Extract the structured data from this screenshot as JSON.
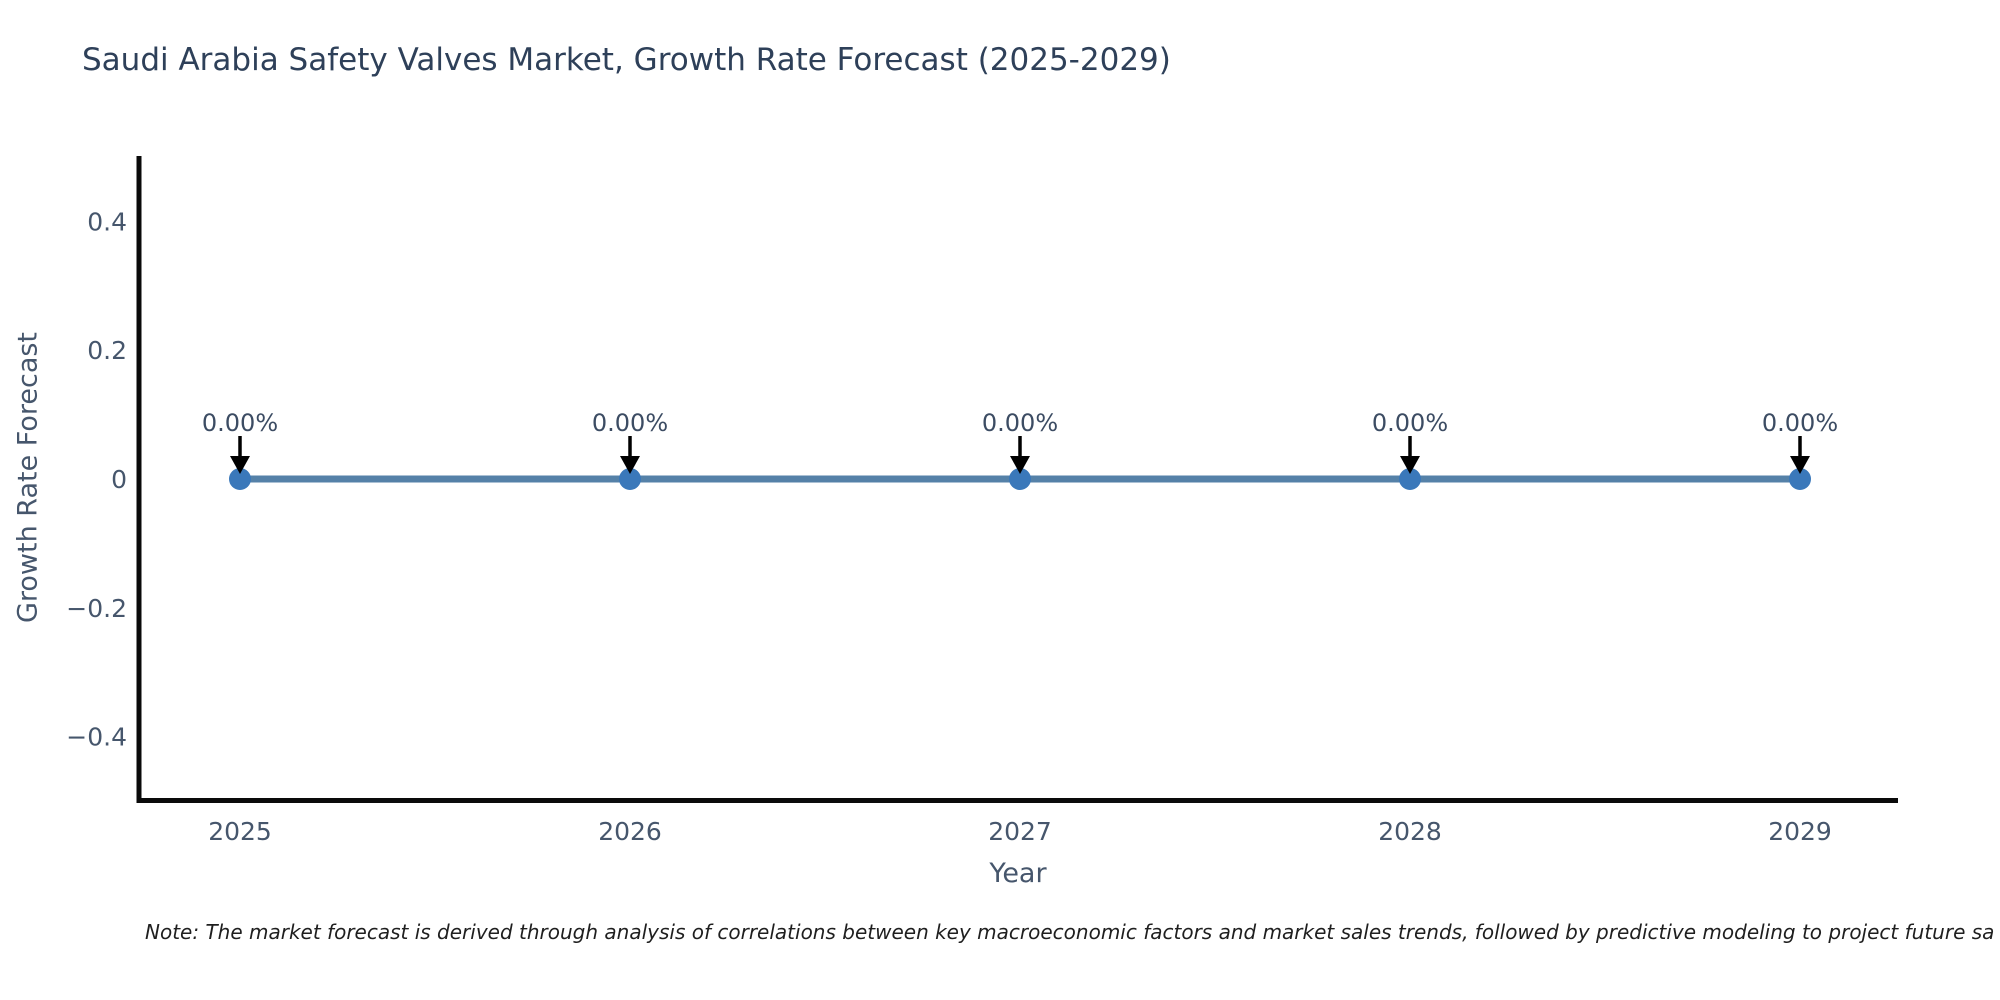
{
  "note": "Note: The market forecast is derived through analysis of correlations between key macroeconomic factors and market sales trends, followed by predictive modeling to project future sa",
  "chart_data": {
    "type": "line",
    "title": "Saudi Arabia Safety Valves Market, Growth Rate Forecast (2025-2029)",
    "xlabel": "Year",
    "ylabel": "Growth Rate Forecast",
    "x": [
      2025,
      2026,
      2027,
      2028,
      2029
    ],
    "values": [
      0,
      0,
      0,
      0,
      0
    ],
    "point_labels": [
      "0.00%",
      "0.00%",
      "0.00%",
      "0.00%",
      "0.00%"
    ],
    "ylim": [
      -0.5,
      0.5
    ],
    "yticks": [
      0.4,
      0.2,
      0,
      -0.2,
      -0.4
    ],
    "ytick_labels": [
      "0.4",
      "0.2",
      "0",
      "−0.2",
      "−0.4"
    ],
    "grid": false,
    "legend": "none",
    "line_color": "#5581a8",
    "marker_color": "#3a78ba",
    "annotation_arrow_color": "#000000",
    "axis_color": "#0a0a0a",
    "text_color": "#46566c",
    "title_color": "#2e4059"
  }
}
